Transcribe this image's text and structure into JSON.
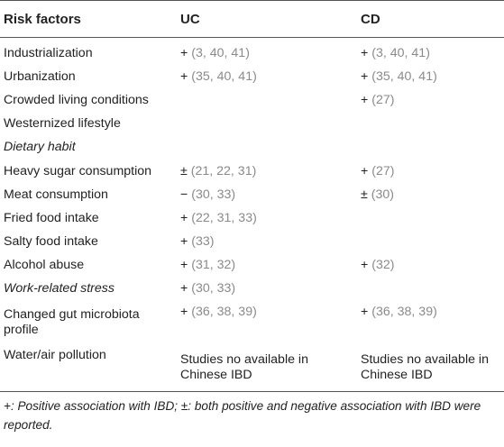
{
  "table": {
    "headers": [
      "Risk factors",
      "UC",
      "CD"
    ],
    "rows": [
      {
        "factor": "Industrialization",
        "italic": false,
        "uc_sign": "+",
        "uc_refs": "(3, 40, 41)",
        "cd_sign": "+",
        "cd_refs": "(3, 40, 41)"
      },
      {
        "factor": "Urbanization",
        "italic": false,
        "uc_sign": "+",
        "uc_refs": "(35, 40, 41)",
        "cd_sign": "+",
        "cd_refs": "(35, 40, 41)"
      },
      {
        "factor": "Crowded living conditions",
        "italic": false,
        "uc_sign": "",
        "uc_refs": "",
        "cd_sign": "+",
        "cd_refs": "(27)"
      },
      {
        "factor": "Westernized lifestyle",
        "italic": false,
        "uc_sign": "",
        "uc_refs": "",
        "cd_sign": "",
        "cd_refs": ""
      },
      {
        "factor": "Dietary habit",
        "italic": true,
        "uc_sign": "",
        "uc_refs": "",
        "cd_sign": "",
        "cd_refs": ""
      },
      {
        "factor": "Heavy sugar consumption",
        "italic": false,
        "uc_sign": "±",
        "uc_refs": "(21, 22, 31)",
        "cd_sign": "+",
        "cd_refs": "(27)"
      },
      {
        "factor": "Meat consumption",
        "italic": false,
        "uc_sign": "−",
        "uc_refs": "(30, 33)",
        "cd_sign": "±",
        "cd_refs": "(30)"
      },
      {
        "factor": "Fried food intake",
        "italic": false,
        "uc_sign": "+",
        "uc_refs": "(22, 31, 33)",
        "cd_sign": "",
        "cd_refs": ""
      },
      {
        "factor": "Salty food intake",
        "italic": false,
        "uc_sign": "+",
        "uc_refs": "(33)",
        "cd_sign": "",
        "cd_refs": ""
      },
      {
        "factor": "Alcohol abuse",
        "italic": false,
        "uc_sign": "+",
        "uc_refs": "(31, 32)",
        "cd_sign": "+",
        "cd_refs": "(32)"
      },
      {
        "factor": "Work-related stress",
        "italic": true,
        "uc_sign": "+",
        "uc_refs": "(30, 33)",
        "cd_sign": "",
        "cd_refs": ""
      }
    ],
    "gut_row": {
      "factor": "Changed gut microbiota profile",
      "uc_sign": "+",
      "uc_refs": "(36, 38, 39)",
      "cd_sign": "+",
      "cd_refs": "(36, 38, 39)"
    },
    "pollution_row": {
      "factor": "Water/air pollution",
      "uc_text": "Studies no available in Chinese IBD",
      "cd_text": "Studies no available in Chinese IBD"
    }
  },
  "footnote": "+: Positive association with IBD; ±: both positive and negative association with IBD were reported."
}
